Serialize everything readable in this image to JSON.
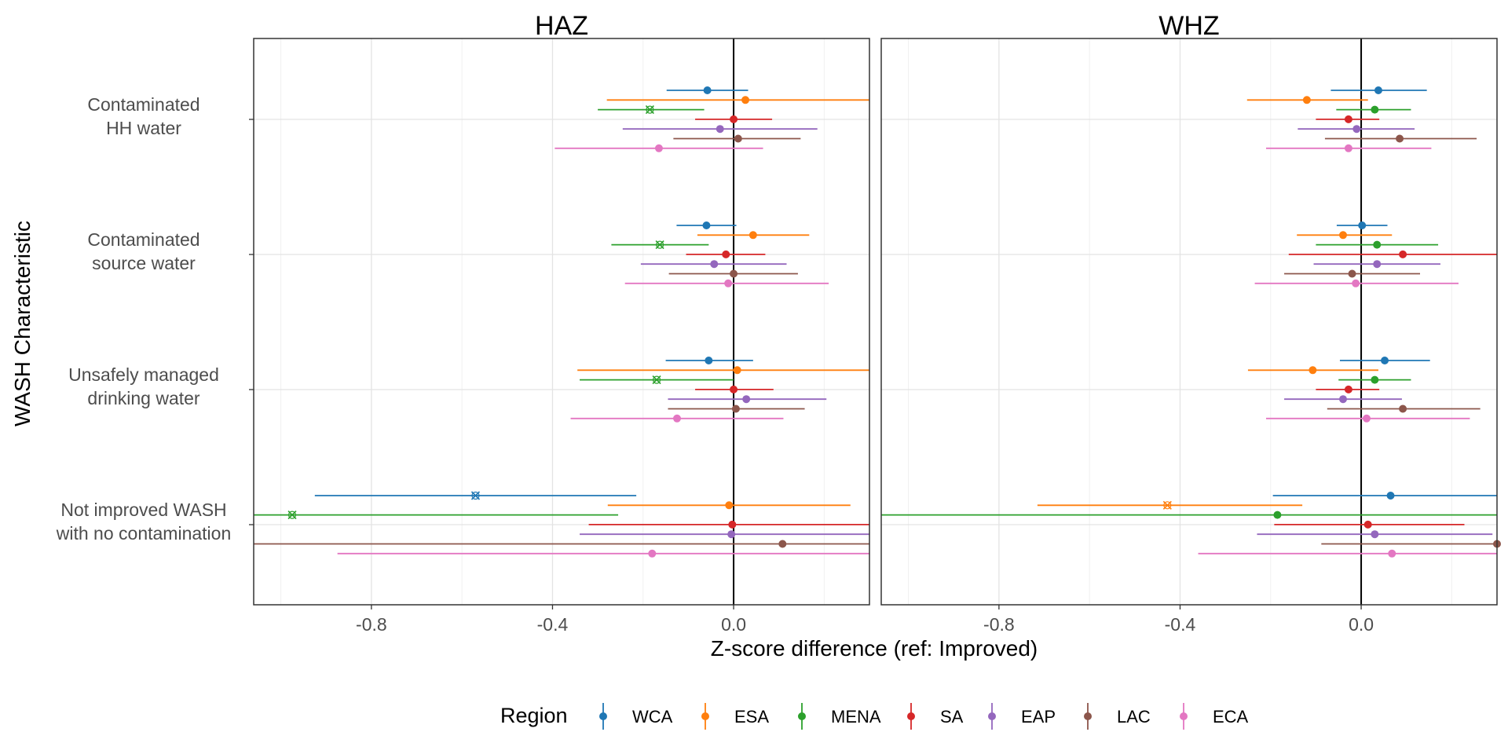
{
  "chart_data": {
    "type": "scatter",
    "subtype": "forest-plot-point-range",
    "facets": [
      "HAZ",
      "WHZ"
    ],
    "xlabel": "Z-score difference (ref: Improved)",
    "ylabel": "WASH Characteristic",
    "xlim": [
      -1.06,
      0.3
    ],
    "x_ticks": [
      -0.8,
      -0.4,
      0.0
    ],
    "x_tick_labels": [
      "-0.8",
      "-0.4",
      "0.0"
    ],
    "reference_line": 0,
    "grid": true,
    "categories": [
      {
        "lines": [
          "Contaminated",
          "HH water"
        ]
      },
      {
        "lines": [
          "Contaminated",
          "source water"
        ]
      },
      {
        "lines": [
          "Unsafely managed",
          "drinking water"
        ]
      },
      {
        "lines": [
          "Not improved WASH",
          "with no contamination"
        ]
      }
    ],
    "legend": {
      "title": "Region",
      "position": "bottom"
    },
    "series": [
      {
        "name": "WCA",
        "color": "#1f77b4",
        "HAZ": [
          {
            "est": -0.058,
            "lo": -0.148,
            "hi": 0.032,
            "marker": "dot"
          },
          {
            "est": -0.06,
            "lo": -0.126,
            "hi": 0.006,
            "marker": "dot"
          },
          {
            "est": -0.055,
            "lo": -0.15,
            "hi": 0.043,
            "marker": "dot"
          },
          {
            "est": -0.57,
            "lo": -0.925,
            "hi": -0.215,
            "marker": "x"
          }
        ],
        "WHZ": [
          {
            "est": 0.038,
            "lo": -0.067,
            "hi": 0.145,
            "marker": "dot"
          },
          {
            "est": 0.002,
            "lo": -0.054,
            "hi": 0.058,
            "marker": "dot"
          },
          {
            "est": 0.052,
            "lo": -0.047,
            "hi": 0.152,
            "marker": "dot"
          },
          {
            "est": 0.065,
            "lo": -0.195,
            "hi": 0.325,
            "marker": "dot"
          }
        ]
      },
      {
        "name": "ESA",
        "color": "#ff7f0e",
        "HAZ": [
          {
            "est": 0.026,
            "lo": -0.28,
            "hi": 0.31,
            "marker": "dot"
          },
          {
            "est": 0.043,
            "lo": -0.08,
            "hi": 0.167,
            "marker": "dot"
          },
          {
            "est": 0.008,
            "lo": -0.345,
            "hi": 0.31,
            "marker": "dot"
          },
          {
            "est": -0.01,
            "lo": -0.278,
            "hi": 0.258,
            "marker": "dot"
          }
        ],
        "WHZ": [
          {
            "est": -0.12,
            "lo": -0.252,
            "hi": 0.015,
            "marker": "dot"
          },
          {
            "est": -0.04,
            "lo": -0.142,
            "hi": 0.068,
            "marker": "dot"
          },
          {
            "est": -0.107,
            "lo": -0.25,
            "hi": 0.038,
            "marker": "dot"
          },
          {
            "est": -0.428,
            "lo": -0.715,
            "hi": -0.13,
            "marker": "x"
          }
        ]
      },
      {
        "name": "MENA",
        "color": "#2ca02c",
        "HAZ": [
          {
            "est": -0.185,
            "lo": -0.3,
            "hi": -0.065,
            "marker": "x"
          },
          {
            "est": -0.163,
            "lo": -0.27,
            "hi": -0.055,
            "marker": "x"
          },
          {
            "est": -0.17,
            "lo": -0.34,
            "hi": 0.0,
            "marker": "x"
          },
          {
            "est": -0.975,
            "lo": -1.06,
            "hi": -0.255,
            "marker": "x"
          }
        ],
        "WHZ": [
          {
            "est": 0.03,
            "lo": -0.055,
            "hi": 0.11,
            "marker": "dot"
          },
          {
            "est": 0.035,
            "lo": -0.1,
            "hi": 0.17,
            "marker": "dot"
          },
          {
            "est": 0.03,
            "lo": -0.05,
            "hi": 0.11,
            "marker": "dot"
          },
          {
            "est": -0.185,
            "lo": -1.06,
            "hi": 0.31,
            "marker": "dot"
          }
        ]
      },
      {
        "name": "SA",
        "color": "#d62728",
        "HAZ": [
          {
            "est": 0.0,
            "lo": -0.085,
            "hi": 0.085,
            "marker": "dot"
          },
          {
            "est": -0.017,
            "lo": -0.105,
            "hi": 0.07,
            "marker": "dot"
          },
          {
            "est": 0.0,
            "lo": -0.085,
            "hi": 0.088,
            "marker": "dot"
          },
          {
            "est": -0.003,
            "lo": -0.32,
            "hi": 0.31,
            "marker": "dot"
          }
        ],
        "WHZ": [
          {
            "est": -0.028,
            "lo": -0.1,
            "hi": 0.04,
            "marker": "dot"
          },
          {
            "est": 0.092,
            "lo": -0.16,
            "hi": 0.31,
            "marker": "dot"
          },
          {
            "est": -0.028,
            "lo": -0.1,
            "hi": 0.04,
            "marker": "dot"
          },
          {
            "est": 0.015,
            "lo": -0.192,
            "hi": 0.228,
            "marker": "dot"
          }
        ]
      },
      {
        "name": "EAP",
        "color": "#9467bd",
        "HAZ": [
          {
            "est": -0.03,
            "lo": -0.245,
            "hi": 0.185,
            "marker": "dot"
          },
          {
            "est": -0.043,
            "lo": -0.205,
            "hi": 0.117,
            "marker": "dot"
          },
          {
            "est": 0.028,
            "lo": -0.145,
            "hi": 0.205,
            "marker": "dot"
          },
          {
            "est": -0.005,
            "lo": -0.34,
            "hi": 0.31,
            "marker": "dot"
          }
        ],
        "WHZ": [
          {
            "est": -0.01,
            "lo": -0.14,
            "hi": 0.118,
            "marker": "dot"
          },
          {
            "est": 0.035,
            "lo": -0.105,
            "hi": 0.175,
            "marker": "dot"
          },
          {
            "est": -0.04,
            "lo": -0.17,
            "hi": 0.09,
            "marker": "dot"
          },
          {
            "est": 0.03,
            "lo": -0.23,
            "hi": 0.29,
            "marker": "dot"
          }
        ]
      },
      {
        "name": "LAC",
        "color": "#8c564b",
        "HAZ": [
          {
            "est": 0.01,
            "lo": -0.133,
            "hi": 0.148,
            "marker": "dot"
          },
          {
            "est": 0.0,
            "lo": -0.143,
            "hi": 0.142,
            "marker": "dot"
          },
          {
            "est": 0.005,
            "lo": -0.145,
            "hi": 0.157,
            "marker": "dot"
          },
          {
            "est": 0.108,
            "lo": -1.06,
            "hi": 0.31,
            "marker": "dot"
          }
        ],
        "WHZ": [
          {
            "est": 0.085,
            "lo": -0.08,
            "hi": 0.255,
            "marker": "dot"
          },
          {
            "est": -0.02,
            "lo": -0.17,
            "hi": 0.13,
            "marker": "dot"
          },
          {
            "est": 0.092,
            "lo": -0.075,
            "hi": 0.263,
            "marker": "dot"
          },
          {
            "est": 0.32,
            "lo": -0.088,
            "hi": 0.33,
            "marker": "dot"
          }
        ]
      },
      {
        "name": "ECA",
        "color": "#e377c2",
        "HAZ": [
          {
            "est": -0.165,
            "lo": -0.395,
            "hi": 0.065,
            "marker": "dot"
          },
          {
            "est": -0.012,
            "lo": -0.24,
            "hi": 0.21,
            "marker": "dot"
          },
          {
            "est": -0.125,
            "lo": -0.36,
            "hi": 0.11,
            "marker": "dot"
          },
          {
            "est": -0.18,
            "lo": -0.875,
            "hi": 0.31,
            "marker": "dot"
          }
        ],
        "WHZ": [
          {
            "est": -0.028,
            "lo": -0.21,
            "hi": 0.155,
            "marker": "dot"
          },
          {
            "est": -0.012,
            "lo": -0.235,
            "hi": 0.215,
            "marker": "dot"
          },
          {
            "est": 0.012,
            "lo": -0.21,
            "hi": 0.24,
            "marker": "dot"
          },
          {
            "est": 0.068,
            "lo": -0.36,
            "hi": 0.31,
            "marker": "dot"
          }
        ]
      }
    ]
  }
}
